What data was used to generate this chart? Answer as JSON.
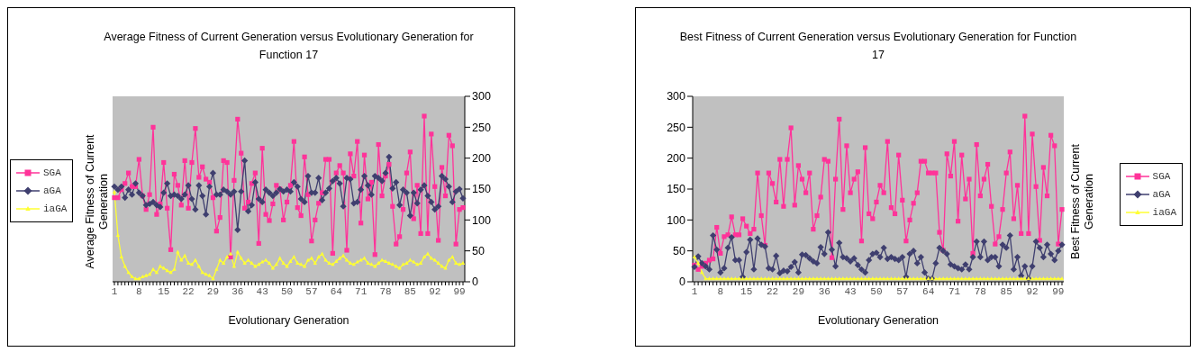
{
  "chart_data": [
    {
      "type": "line",
      "title": "Average Fitness of Current Generation versus Evolutionary Generation for Function 17",
      "xlabel": "Evolutionary Generation",
      "ylabel": "Average Fitness of Current Generation",
      "y2lim": [
        0,
        300
      ],
      "y2ticks": [
        0,
        50,
        100,
        150,
        200,
        250,
        300
      ],
      "grid": false,
      "legend": "left",
      "categories": [
        "1",
        null,
        null,
        null,
        null,
        null,
        null,
        "8",
        null,
        null,
        null,
        null,
        null,
        null,
        "15",
        null,
        null,
        null,
        null,
        null,
        null,
        "22",
        null,
        null,
        null,
        null,
        null,
        null,
        "29",
        null,
        null,
        null,
        null,
        null,
        null,
        "36",
        null,
        null,
        null,
        null,
        null,
        null,
        "43",
        null,
        null,
        null,
        null,
        null,
        null,
        "50",
        null,
        null,
        null,
        null,
        null,
        null,
        "57",
        null,
        null,
        null,
        null,
        null,
        null,
        "64",
        null,
        null,
        null,
        null,
        null,
        null,
        "71",
        null,
        null,
        null,
        null,
        null,
        null,
        "78",
        null,
        null,
        null,
        null,
        null,
        null,
        "85",
        null,
        null,
        null,
        null,
        null,
        null,
        "92",
        null,
        null,
        null,
        null,
        null,
        null,
        "99",
        null
      ],
      "series": [
        {
          "name": "SGA",
          "color": "#ff3399",
          "marker": "square",
          "axis": "y2",
          "values": [
            136,
            136,
            149,
            159,
            176,
            154,
            154,
            198,
            139,
            117,
            141,
            250,
            109,
            126,
            193,
            119,
            52,
            174,
            156,
            124,
            196,
            119,
            193,
            248,
            169,
            186,
            166,
            161,
            136,
            82,
            104,
            196,
            193,
            40,
            164,
            263,
            208,
            119,
            129,
            159,
            176,
            62,
            216,
            109,
            99,
            126,
            156,
            150,
            100,
            129,
            156,
            227,
            120,
            107,
            202,
            141,
            66,
            100,
            127,
            144,
            198,
            198,
            46,
            176,
            188,
            176,
            51,
            207,
            171,
            227,
            95,
            205,
            134,
            161,
            44,
            222,
            139,
            171,
            190,
            122,
            61,
            73,
            117,
            176,
            210,
            102,
            156,
            78,
            268,
            78,
            239,
            154,
            67,
            185,
            139,
            237,
            220,
            61,
            117,
            120
          ]
        },
        {
          "name": "aGA",
          "color": "#3f3f6f",
          "marker": "diamond",
          "axis": "y2",
          "values": [
            154,
            149,
            154,
            136,
            149,
            141,
            159,
            144,
            139,
            124,
            126,
            129,
            124,
            121,
            144,
            159,
            139,
            141,
            139,
            134,
            141,
            156,
            134,
            117,
            156,
            139,
            109,
            154,
            176,
            141,
            141,
            149,
            146,
            141,
            146,
            84,
            146,
            196,
            114,
            124,
            161,
            134,
            129,
            149,
            144,
            139,
            144,
            150,
            146,
            149,
            146,
            161,
            154,
            134,
            129,
            171,
            144,
            144,
            168,
            132,
            144,
            151,
            163,
            168,
            159,
            122,
            168,
            166,
            127,
            129,
            149,
            171,
            156,
            141,
            171,
            168,
            163,
            176,
            202,
            151,
            161,
            124,
            149,
            144,
            107,
            144,
            127,
            149,
            156,
            139,
            129,
            117,
            122,
            171,
            166,
            154,
            129,
            146,
            150,
            135
          ]
        },
        {
          "name": "iaGA",
          "color": "#ffff33",
          "marker": "triangle",
          "axis": "y2",
          "values": [
            145,
            75,
            40,
            25,
            15,
            8,
            5,
            5,
            8,
            10,
            12,
            20,
            15,
            25,
            22,
            18,
            15,
            20,
            48,
            35,
            42,
            30,
            28,
            35,
            25,
            15,
            12,
            10,
            5,
            20,
            35,
            30,
            40,
            45,
            25,
            48,
            38,
            30,
            35,
            30,
            25,
            28,
            32,
            35,
            30,
            22,
            28,
            38,
            30,
            25,
            33,
            40,
            30,
            28,
            25,
            35,
            38,
            30,
            40,
            45,
            35,
            30,
            28,
            33,
            38,
            42,
            35,
            30,
            28,
            32,
            35,
            38,
            30,
            28,
            25,
            30,
            35,
            33,
            30,
            28,
            25,
            22,
            28,
            30,
            35,
            32,
            28,
            30,
            40,
            45,
            38,
            35,
            30,
            25,
            22,
            35,
            40,
            30,
            28,
            30
          ]
        }
      ]
    },
    {
      "type": "line",
      "title": "Best Fitness of Current Generation versus Evolutionary Generation for Function 17",
      "xlabel": "Evolutionary Generation",
      "ylabel": "Best Fitness of Current Generation",
      "ylim": [
        0,
        300
      ],
      "yticks": [
        0,
        50,
        100,
        150,
        200,
        250,
        300
      ],
      "grid": false,
      "legend": "right",
      "categories": [
        "1",
        null,
        null,
        null,
        null,
        null,
        null,
        "8",
        null,
        null,
        null,
        null,
        null,
        null,
        "15",
        null,
        null,
        null,
        null,
        null,
        null,
        "22",
        null,
        null,
        null,
        null,
        null,
        null,
        "29",
        null,
        null,
        null,
        null,
        null,
        null,
        "36",
        null,
        null,
        null,
        null,
        null,
        null,
        "43",
        null,
        null,
        null,
        null,
        null,
        null,
        "50",
        null,
        null,
        null,
        null,
        null,
        null,
        "57",
        null,
        null,
        null,
        null,
        null,
        null,
        "64",
        null,
        null,
        null,
        null,
        null,
        null,
        "71",
        null,
        null,
        null,
        null,
        null,
        null,
        "78",
        null,
        null,
        null,
        null,
        null,
        null,
        "85",
        null,
        null,
        null,
        null,
        null,
        null,
        "92",
        null,
        null,
        null,
        null,
        null,
        null,
        "99",
        null
      ],
      "series": [
        {
          "name": "SGA",
          "color": "#ff3399",
          "marker": "square",
          "values": [
            27,
            20,
            25,
            30,
            35,
            37,
            88,
            46,
            73,
            76,
            105,
            76,
            76,
            102,
            90,
            78,
            85,
            176,
            107,
            59,
            176,
            159,
            129,
            198,
            122,
            198,
            249,
            124,
            188,
            166,
            144,
            176,
            85,
            107,
            137,
            198,
            195,
            39,
            166,
            263,
            117,
            220,
            144,
            166,
            178,
            66,
            217,
            110,
            102,
            129,
            156,
            144,
            227,
            120,
            110,
            205,
            132,
            66,
            100,
            127,
            144,
            195,
            195,
            176,
            176,
            176,
            80,
            51,
            207,
            171,
            227,
            98,
            205,
            134,
            166,
            46,
            222,
            139,
            166,
            190,
            122,
            61,
            73,
            117,
            176,
            210,
            102,
            156,
            78,
            268,
            78,
            239,
            154,
            67,
            185,
            139,
            237,
            220,
            61,
            117
          ]
        },
        {
          "name": "aGA",
          "color": "#3f3f6f",
          "marker": "diamond",
          "values": [
            24,
            41,
            30,
            25,
            20,
            75,
            52,
            15,
            22,
            55,
            72,
            35,
            35,
            8,
            48,
            68,
            20,
            70,
            60,
            57,
            22,
            20,
            42,
            14,
            18,
            17,
            24,
            32,
            15,
            44,
            43,
            38,
            33,
            30,
            56,
            45,
            80,
            52,
            25,
            63,
            40,
            38,
            33,
            38,
            27,
            20,
            15,
            35,
            45,
            47,
            40,
            55,
            37,
            40,
            37,
            35,
            40,
            8,
            45,
            50,
            30,
            40,
            15,
            5,
            5,
            30,
            55,
            50,
            45,
            28,
            25,
            22,
            20,
            28,
            20,
            40,
            65,
            40,
            65,
            35,
            40,
            40,
            25,
            60,
            55,
            75,
            20,
            40,
            10,
            25,
            5,
            25,
            65,
            55,
            40,
            60,
            45,
            35,
            50,
            60
          ]
        },
        {
          "name": "iaGA",
          "color": "#ffff33",
          "marker": "triangle",
          "values": [
            40,
            30,
            15,
            5,
            5,
            5,
            5,
            5,
            5,
            5,
            5,
            5,
            5,
            5,
            5,
            5,
            5,
            5,
            5,
            5,
            5,
            5,
            5,
            5,
            5,
            5,
            5,
            5,
            5,
            5,
            5,
            5,
            5,
            5,
            5,
            5,
            5,
            5,
            5,
            5,
            5,
            5,
            5,
            5,
            5,
            5,
            5,
            5,
            5,
            5,
            5,
            5,
            5,
            5,
            5,
            5,
            5,
            5,
            5,
            5,
            5,
            5,
            5,
            5,
            5,
            5,
            5,
            5,
            5,
            5,
            5,
            5,
            5,
            5,
            5,
            5,
            5,
            5,
            5,
            5,
            5,
            5,
            5,
            5,
            5,
            5,
            5,
            5,
            5,
            5,
            5,
            5,
            5,
            5,
            5,
            5,
            5,
            5,
            5,
            5
          ]
        }
      ]
    }
  ]
}
